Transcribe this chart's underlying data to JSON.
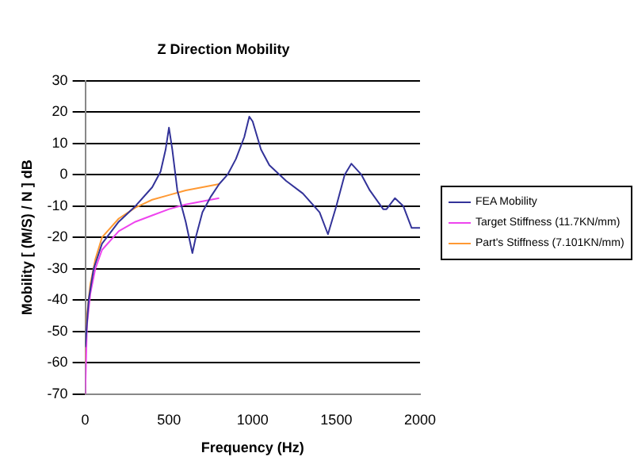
{
  "chart_data": {
    "type": "line",
    "title": "Z Direction Mobility",
    "xlabel": "Frequency (Hz)",
    "ylabel": "Mobility [ (M/S) / N ] dB",
    "xlim": [
      0,
      2000
    ],
    "xticks": [
      0,
      500,
      1000,
      1500,
      2000
    ],
    "ylim": [
      -70,
      30
    ],
    "yticks": [
      -70,
      -60,
      -50,
      -40,
      -30,
      -20,
      -10,
      0,
      10,
      20,
      30
    ],
    "grid": "y",
    "legend": "right",
    "marker": "none",
    "line_style": "solid",
    "series": [
      {
        "name": "FEA Mobility",
        "color": "#333399",
        "x": [
          0,
          20,
          50,
          100,
          200,
          300,
          400,
          450,
          480,
          500,
          520,
          550,
          600,
          640,
          660,
          700,
          750,
          800,
          850,
          900,
          950,
          980,
          1000,
          1050,
          1100,
          1200,
          1300,
          1400,
          1450,
          1500,
          1550,
          1590,
          1650,
          1700,
          1780,
          1800,
          1850,
          1900,
          1950,
          2000
        ],
        "values": [
          -55,
          -40,
          -30,
          -22,
          -15,
          -10,
          -4,
          1,
          8,
          15,
          8,
          -5,
          -15,
          -25,
          -20,
          -12,
          -7,
          -3,
          0,
          5,
          12,
          18.5,
          17,
          8,
          3,
          -2,
          -6,
          -12,
          -19,
          -10,
          0,
          3.5,
          0,
          -5,
          -11,
          -11,
          -7.5,
          -10,
          -17,
          -17
        ]
      },
      {
        "name": "Target Stiffness (11.7KN/mm)",
        "color": "#ee44ee",
        "x": [
          0,
          10,
          30,
          60,
          100,
          200,
          300,
          400,
          500,
          600,
          700,
          800
        ],
        "values": [
          -70,
          -48,
          -38,
          -30,
          -24,
          -18,
          -15,
          -13,
          -11,
          -9.5,
          -8.5,
          -7.5
        ]
      },
      {
        "name": "Part's Stiffness (7.101KN/mm)",
        "color": "#ff9933",
        "x": [
          0,
          10,
          30,
          60,
          100,
          200,
          300,
          400,
          500,
          600,
          700,
          800
        ],
        "values": [
          -60,
          -45,
          -35,
          -27,
          -20,
          -14,
          -10.5,
          -8,
          -6.5,
          -5,
          -4,
          -3
        ]
      }
    ]
  }
}
